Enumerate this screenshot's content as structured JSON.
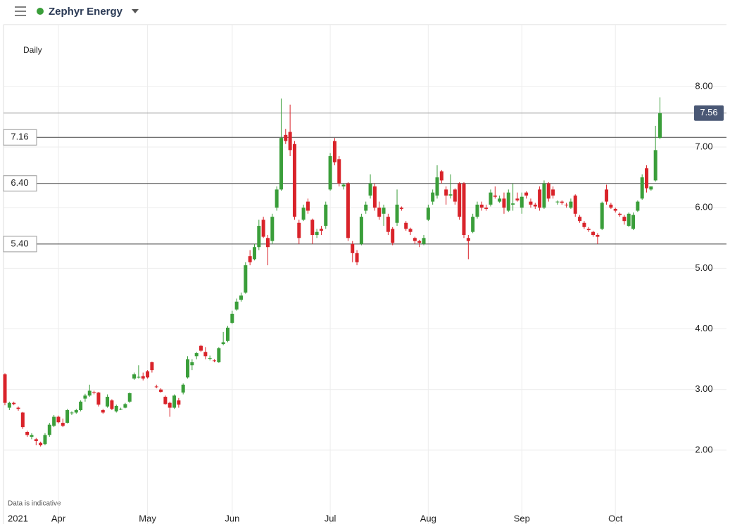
{
  "chart_data": {
    "type": "candlestick",
    "title": "Zephyr Energy",
    "interval": "Daily",
    "note": "Data is indicative",
    "year_label": "2021",
    "up_color": "#3a9e3a",
    "down_color": "#d9232a",
    "grid": true,
    "ylim": [
      0.78,
      9.02
    ],
    "yticks": [
      {
        "value": 2,
        "label": "2.00"
      },
      {
        "value": 3,
        "label": "3.00"
      },
      {
        "value": 4,
        "label": "4.00"
      },
      {
        "value": 5,
        "label": "5.00"
      },
      {
        "value": 6,
        "label": "6.00"
      },
      {
        "value": 7,
        "label": "7.00"
      },
      {
        "value": 8,
        "label": "8.00"
      }
    ],
    "last_price": 7.56,
    "levels": [
      {
        "value": 7.16,
        "label": "7.16"
      },
      {
        "value": 6.4,
        "label": "6.40"
      },
      {
        "value": 5.4,
        "label": "5.40"
      }
    ],
    "categories": [
      null,
      null,
      null,
      null,
      null,
      null,
      null,
      null,
      null,
      null,
      null,
      null,
      "Apr",
      null,
      null,
      null,
      null,
      null,
      null,
      null,
      null,
      null,
      null,
      null,
      null,
      null,
      null,
      null,
      null,
      null,
      null,
      null,
      "May",
      null,
      null,
      null,
      null,
      null,
      null,
      null,
      null,
      null,
      null,
      null,
      null,
      null,
      null,
      null,
      null,
      null,
      null,
      "Jun",
      null,
      null,
      null,
      null,
      null,
      null,
      null,
      null,
      null,
      null,
      null,
      null,
      null,
      null,
      null,
      null,
      null,
      null,
      null,
      null,
      null,
      "Jul",
      null,
      null,
      null,
      null,
      null,
      null,
      null,
      null,
      null,
      null,
      null,
      null,
      null,
      null,
      null,
      null,
      null,
      null,
      null,
      null,
      null,
      "Aug",
      null,
      null,
      null,
      null,
      null,
      null,
      null,
      null,
      null,
      null,
      null,
      null,
      null,
      null,
      null,
      null,
      null,
      null,
      null,
      null,
      "Sep",
      null,
      null,
      null,
      null,
      null,
      null,
      null,
      null,
      null,
      null,
      null,
      null,
      null,
      null,
      null,
      null,
      null,
      null,
      null,
      null,
      "Oct",
      null,
      null,
      null,
      null,
      null,
      null,
      null,
      null,
      null,
      null
    ],
    "ohlc": [
      [
        3.25,
        3.27,
        2.74,
        2.78
      ],
      [
        2.7,
        2.8,
        2.66,
        2.78
      ],
      [
        2.78,
        2.8,
        2.74,
        2.76
      ],
      [
        2.7,
        2.72,
        2.65,
        2.68
      ],
      [
        2.62,
        2.63,
        2.35,
        2.38
      ],
      [
        2.3,
        2.32,
        2.22,
        2.25
      ],
      [
        2.22,
        2.28,
        2.18,
        2.25
      ],
      [
        2.18,
        2.2,
        2.08,
        2.15
      ],
      [
        2.12,
        2.14,
        2.06,
        2.08
      ],
      [
        2.1,
        2.28,
        2.08,
        2.25
      ],
      [
        2.25,
        2.45,
        2.22,
        2.42
      ],
      [
        2.4,
        2.58,
        2.38,
        2.55
      ],
      [
        2.55,
        2.57,
        2.44,
        2.46
      ],
      [
        2.45,
        2.52,
        2.38,
        2.4
      ],
      [
        2.45,
        2.68,
        2.44,
        2.66
      ],
      [
        2.62,
        2.64,
        2.58,
        2.62
      ],
      [
        2.62,
        2.68,
        2.6,
        2.66
      ],
      [
        2.66,
        2.82,
        2.64,
        2.8
      ],
      [
        2.85,
        2.93,
        2.8,
        2.9
      ],
      [
        2.9,
        3.08,
        2.88,
        2.98
      ],
      [
        2.96,
        2.98,
        2.92,
        2.95
      ],
      [
        2.95,
        2.96,
        2.72,
        2.75
      ],
      [
        2.66,
        2.68,
        2.6,
        2.62
      ],
      [
        2.72,
        2.92,
        2.7,
        2.88
      ],
      [
        2.82,
        2.84,
        2.66,
        2.68
      ],
      [
        2.64,
        2.75,
        2.62,
        2.73
      ],
      [
        2.68,
        2.7,
        2.66,
        2.68
      ],
      [
        2.7,
        2.78,
        2.69,
        2.76
      ],
      [
        2.8,
        2.95,
        2.78,
        2.94
      ],
      [
        3.18,
        3.28,
        3.16,
        3.25
      ],
      [
        3.2,
        3.4,
        3.18,
        3.21
      ],
      [
        3.22,
        3.28,
        3.15,
        3.18
      ],
      [
        3.3,
        3.32,
        3.18,
        3.2
      ],
      [
        3.45,
        3.46,
        3.28,
        3.32
      ],
      [
        3.05,
        3.08,
        3.02,
        3.04
      ],
      [
        3.0,
        3.02,
        2.95,
        2.96
      ],
      [
        2.88,
        2.9,
        2.75,
        2.76
      ],
      [
        2.78,
        2.8,
        2.55,
        2.7
      ],
      [
        2.7,
        2.92,
        2.68,
        2.9
      ],
      [
        2.82,
        2.86,
        2.7,
        2.75
      ],
      [
        2.95,
        3.1,
        2.92,
        3.08
      ],
      [
        3.2,
        3.55,
        3.18,
        3.5
      ],
      [
        3.4,
        3.5,
        3.32,
        3.45
      ],
      [
        3.55,
        3.62,
        3.5,
        3.6
      ],
      [
        3.72,
        3.74,
        3.62,
        3.64
      ],
      [
        3.62,
        3.7,
        3.5,
        3.55
      ],
      [
        3.52,
        3.56,
        3.48,
        3.52
      ],
      [
        3.48,
        3.5,
        3.45,
        3.47
      ],
      [
        3.45,
        3.7,
        3.44,
        3.68
      ],
      [
        3.75,
        3.95,
        3.73,
        3.78
      ],
      [
        3.8,
        4.05,
        3.78,
        4.02
      ],
      [
        4.1,
        4.3,
        4.08,
        4.25
      ],
      [
        4.32,
        4.5,
        4.3,
        4.45
      ],
      [
        4.48,
        4.6,
        4.45,
        4.55
      ],
      [
        4.6,
        5.1,
        4.58,
        5.05
      ],
      [
        5.2,
        5.3,
        5.05,
        5.1
      ],
      [
        5.15,
        5.4,
        5.13,
        5.35
      ],
      [
        5.35,
        5.8,
        5.3,
        5.7
      ],
      [
        5.8,
        5.85,
        5.5,
        5.52
      ],
      [
        5.5,
        5.55,
        5.05,
        5.35
      ],
      [
        5.45,
        5.9,
        5.4,
        5.85
      ],
      [
        6.0,
        6.35,
        5.95,
        6.3
      ],
      [
        6.3,
        7.8,
        6.28,
        7.15
      ],
      [
        7.2,
        7.3,
        7.05,
        7.1
      ],
      [
        7.25,
        7.7,
        6.85,
        6.95
      ],
      [
        7.05,
        7.1,
        5.8,
        5.85
      ],
      [
        5.75,
        5.8,
        5.4,
        5.5
      ],
      [
        5.8,
        6.05,
        5.78,
        6.0
      ],
      [
        6.1,
        6.15,
        5.9,
        5.95
      ],
      [
        5.8,
        5.82,
        5.4,
        5.55
      ],
      [
        5.55,
        5.65,
        5.5,
        5.6
      ],
      [
        5.65,
        5.7,
        5.55,
        5.62
      ],
      [
        5.7,
        6.1,
        5.65,
        6.05
      ],
      [
        6.3,
        6.9,
        6.28,
        6.85
      ],
      [
        7.1,
        7.15,
        6.7,
        6.75
      ],
      [
        6.8,
        6.85,
        6.35,
        6.4
      ],
      [
        6.35,
        6.4,
        6.3,
        6.38
      ],
      [
        6.4,
        6.42,
        5.45,
        5.5
      ],
      [
        5.4,
        5.45,
        5.1,
        5.25
      ],
      [
        5.25,
        5.3,
        5.05,
        5.1
      ],
      [
        5.4,
        5.9,
        5.38,
        5.85
      ],
      [
        5.95,
        6.1,
        5.9,
        6.05
      ],
      [
        6.2,
        6.55,
        6.15,
        6.4
      ],
      [
        6.35,
        6.4,
        5.95,
        6.0
      ],
      [
        6.0,
        6.1,
        5.8,
        5.85
      ],
      [
        5.9,
        6.05,
        5.7,
        6.0
      ],
      [
        5.85,
        5.9,
        5.55,
        5.6
      ],
      [
        5.65,
        5.68,
        5.38,
        5.42
      ],
      [
        5.75,
        6.3,
        5.7,
        6.05
      ],
      [
        6.0,
        6.02,
        5.95,
        5.98
      ],
      [
        5.75,
        5.78,
        5.62,
        5.65
      ],
      [
        5.65,
        5.67,
        5.55,
        5.6
      ],
      [
        5.5,
        5.52,
        5.4,
        5.45
      ],
      [
        5.45,
        5.47,
        5.35,
        5.42
      ],
      [
        5.4,
        5.55,
        5.38,
        5.5
      ],
      [
        5.8,
        6.05,
        5.78,
        6.0
      ],
      [
        6.1,
        6.3,
        6.05,
        6.25
      ],
      [
        6.2,
        6.7,
        6.15,
        6.5
      ],
      [
        6.6,
        6.62,
        6.4,
        6.45
      ],
      [
        6.3,
        6.35,
        6.05,
        6.2
      ],
      [
        6.2,
        6.55,
        6.15,
        6.22
      ],
      [
        6.3,
        6.32,
        6.05,
        6.1
      ],
      [
        6.4,
        6.42,
        5.8,
        5.85
      ],
      [
        6.4,
        6.42,
        5.5,
        5.55
      ],
      [
        5.5,
        5.55,
        5.15,
        5.45
      ],
      [
        5.6,
        5.9,
        5.58,
        5.85
      ],
      [
        5.85,
        6.1,
        5.82,
        6.05
      ],
      [
        6.05,
        6.1,
        5.95,
        6.0
      ],
      [
        6.0,
        6.05,
        5.95,
        5.98
      ],
      [
        6.05,
        6.3,
        6.02,
        6.25
      ],
      [
        6.2,
        6.35,
        6.15,
        6.18
      ],
      [
        6.1,
        6.2,
        6.08,
        6.15
      ],
      [
        6.15,
        6.25,
        5.9,
        6.0
      ],
      [
        5.95,
        6.3,
        5.93,
        6.25
      ],
      [
        6.05,
        6.4,
        5.95,
        6.07
      ],
      [
        6.15,
        6.25,
        6.1,
        6.12
      ],
      [
        6.0,
        6.25,
        5.9,
        6.18
      ],
      [
        6.25,
        6.27,
        6.15,
        6.2
      ],
      [
        6.1,
        6.15,
        6.0,
        6.05
      ],
      [
        6.05,
        6.08,
        5.98,
        6.02
      ],
      [
        6.3,
        6.35,
        5.95,
        6.0
      ],
      [
        6.0,
        6.45,
        5.98,
        6.4
      ],
      [
        6.4,
        6.42,
        6.1,
        6.15
      ],
      [
        6.3,
        6.35,
        6.15,
        6.2
      ],
      [
        6.1,
        6.12,
        6.05,
        6.1
      ],
      [
        6.1,
        6.12,
        6.05,
        6.08
      ],
      [
        6.05,
        6.08,
        6.0,
        6.04
      ],
      [
        6.0,
        6.15,
        5.98,
        6.1
      ],
      [
        6.2,
        6.22,
        5.85,
        5.9
      ],
      [
        5.85,
        5.88,
        5.75,
        5.78
      ],
      [
        5.75,
        5.78,
        5.65,
        5.68
      ],
      [
        5.65,
        5.68,
        5.6,
        5.63
      ],
      [
        5.6,
        5.62,
        5.52,
        5.55
      ],
      [
        5.55,
        5.58,
        5.4,
        5.52
      ],
      [
        5.65,
        6.1,
        5.63,
        6.08
      ],
      [
        6.3,
        6.38,
        6.05,
        6.1
      ],
      [
        6.05,
        6.08,
        5.98,
        6.0
      ],
      [
        5.98,
        6.0,
        5.92,
        5.95
      ],
      [
        5.9,
        5.92,
        5.85,
        5.88
      ],
      [
        5.85,
        5.88,
        5.72,
        5.78
      ],
      [
        5.7,
        5.92,
        5.68,
        5.9
      ],
      [
        5.65,
        5.92,
        5.63,
        5.88
      ],
      [
        5.95,
        6.12,
        5.93,
        6.1
      ],
      [
        6.15,
        6.55,
        6.13,
        6.5
      ],
      [
        6.65,
        6.7,
        6.25,
        6.32
      ],
      [
        6.3,
        6.35,
        6.28,
        6.35
      ],
      [
        6.45,
        7.35,
        6.43,
        6.95
      ],
      [
        7.15,
        7.82,
        7.13,
        7.56
      ]
    ]
  }
}
